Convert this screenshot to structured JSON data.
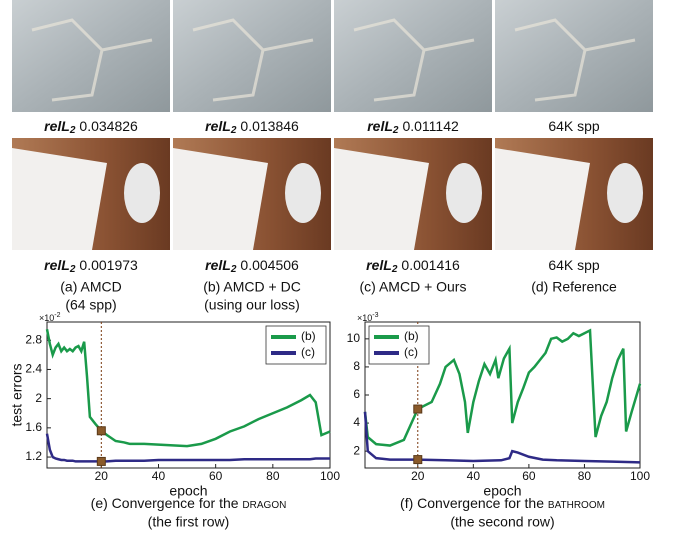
{
  "images": {
    "rows": [
      {
        "captions": [
          {
            "metric": "relL",
            "sub": "2",
            "value": "0.034826"
          },
          {
            "metric": "relL",
            "sub": "2",
            "value": "0.013846"
          },
          {
            "metric": "relL",
            "sub": "2",
            "value": "0.011142"
          },
          {
            "text": "64K spp"
          }
        ]
      },
      {
        "captions": [
          {
            "metric": "relL",
            "sub": "2",
            "value": "0.001973"
          },
          {
            "metric": "relL",
            "sub": "2",
            "value": "0.004506"
          },
          {
            "metric": "relL",
            "sub": "2",
            "value": "0.001416"
          },
          {
            "text": "64K spp"
          }
        ]
      }
    ],
    "columns": [
      {
        "line1": "(a) AMCD",
        "line2": "(64 spp)"
      },
      {
        "line1": "(b) AMCD + DC",
        "line2": "(using our loss)"
      },
      {
        "line1": "(c) AMCD + Ours"
      },
      {
        "line1": "(d) Reference"
      }
    ]
  },
  "chart_data": [
    {
      "type": "line",
      "ylabel": "test errors",
      "xlabel": "epoch",
      "y_exponent": {
        "base": "×10",
        "exp": "-2"
      },
      "caption": {
        "prefix": "(e) Convergence for the ",
        "name": "dragon",
        "line2": "(the first row)"
      },
      "xlim": [
        1,
        100
      ],
      "xticks": [
        20,
        40,
        60,
        80,
        100
      ],
      "ylim": [
        1.05,
        3.05
      ],
      "yticks": [
        1.2,
        1.6,
        2,
        2.4,
        2.8
      ],
      "legend": "upper right",
      "vline": 20,
      "series": [
        {
          "name": "(b)",
          "color": "#1a9a4a",
          "x": [
            1,
            2,
            3,
            4,
            5,
            6,
            7,
            8,
            9,
            10,
            11,
            12,
            13,
            14,
            15,
            16,
            18,
            20,
            22,
            25,
            28,
            30,
            35,
            40,
            45,
            50,
            55,
            60,
            65,
            70,
            75,
            80,
            85,
            90,
            93,
            95,
            97,
            100
          ],
          "values": [
            2.95,
            2.75,
            2.6,
            2.7,
            2.75,
            2.65,
            2.7,
            2.65,
            2.68,
            2.65,
            2.7,
            2.72,
            2.65,
            2.78,
            2.3,
            1.75,
            1.65,
            1.56,
            1.5,
            1.42,
            1.4,
            1.38,
            1.38,
            1.37,
            1.36,
            1.35,
            1.38,
            1.45,
            1.55,
            1.62,
            1.72,
            1.8,
            1.88,
            1.98,
            2.05,
            1.95,
            1.5,
            1.55
          ]
        },
        {
          "name": "(c)",
          "color": "#2e2a86",
          "x": [
            1,
            2,
            3,
            4,
            5,
            6,
            7,
            8,
            9,
            10,
            11,
            12,
            13,
            14,
            15,
            16,
            18,
            20,
            22,
            25,
            28,
            30,
            35,
            40,
            45,
            50,
            55,
            60,
            65,
            70,
            75,
            80,
            85,
            90,
            93,
            95,
            97,
            100
          ],
          "values": [
            1.52,
            1.3,
            1.2,
            1.18,
            1.17,
            1.16,
            1.16,
            1.15,
            1.15,
            1.15,
            1.14,
            1.14,
            1.14,
            1.14,
            1.14,
            1.14,
            1.14,
            1.14,
            1.14,
            1.15,
            1.15,
            1.15,
            1.15,
            1.16,
            1.16,
            1.16,
            1.16,
            1.16,
            1.16,
            1.17,
            1.17,
            1.17,
            1.17,
            1.17,
            1.17,
            1.18,
            1.18,
            1.18
          ]
        }
      ]
    },
    {
      "type": "line",
      "xlabel": "epoch",
      "y_exponent": {
        "base": "×10",
        "exp": "-3"
      },
      "caption": {
        "prefix": "(f) Convergence for the ",
        "name": "bathroom",
        "line2": "(the second row)"
      },
      "xlim": [
        1,
        100
      ],
      "xticks": [
        20,
        40,
        60,
        80,
        100
      ],
      "ylim": [
        0.8,
        11.2
      ],
      "yticks": [
        2,
        4,
        6,
        8,
        10
      ],
      "legend": "upper left",
      "vline": 20,
      "series": [
        {
          "name": "(b)",
          "color": "#1a9a4a",
          "x": [
            1,
            2,
            5,
            10,
            15,
            20,
            25,
            28,
            30,
            33,
            35,
            37,
            38,
            40,
            42,
            44,
            46,
            48,
            49,
            51,
            53,
            54,
            56,
            58,
            60,
            62,
            64,
            66,
            68,
            70,
            72,
            74,
            76,
            78,
            80,
            82,
            84,
            86,
            88,
            90,
            92,
            94,
            95,
            97,
            100
          ],
          "values": [
            4.8,
            3.0,
            2.5,
            2.4,
            2.8,
            5.0,
            5.5,
            6.8,
            8.0,
            8.5,
            7.5,
            5.5,
            3.3,
            5.5,
            7.0,
            8.2,
            7.5,
            8.5,
            7.2,
            8.6,
            9.3,
            4.0,
            5.5,
            6.5,
            7.6,
            8.0,
            8.5,
            9.0,
            10.0,
            10.1,
            9.8,
            10.0,
            10.4,
            10.2,
            10.4,
            10.6,
            3.0,
            4.5,
            5.5,
            7.2,
            8.5,
            9.3,
            3.4,
            4.8,
            6.8
          ]
        },
        {
          "name": "(c)",
          "color": "#2e2a86",
          "x": [
            1,
            2,
            5,
            10,
            20,
            30,
            40,
            50,
            53,
            54,
            56,
            60,
            65,
            70,
            80,
            90,
            100
          ],
          "values": [
            4.8,
            2.0,
            1.5,
            1.4,
            1.4,
            1.35,
            1.3,
            1.35,
            1.5,
            2.0,
            1.9,
            1.6,
            1.4,
            1.35,
            1.3,
            1.25,
            1.2
          ]
        }
      ]
    }
  ]
}
